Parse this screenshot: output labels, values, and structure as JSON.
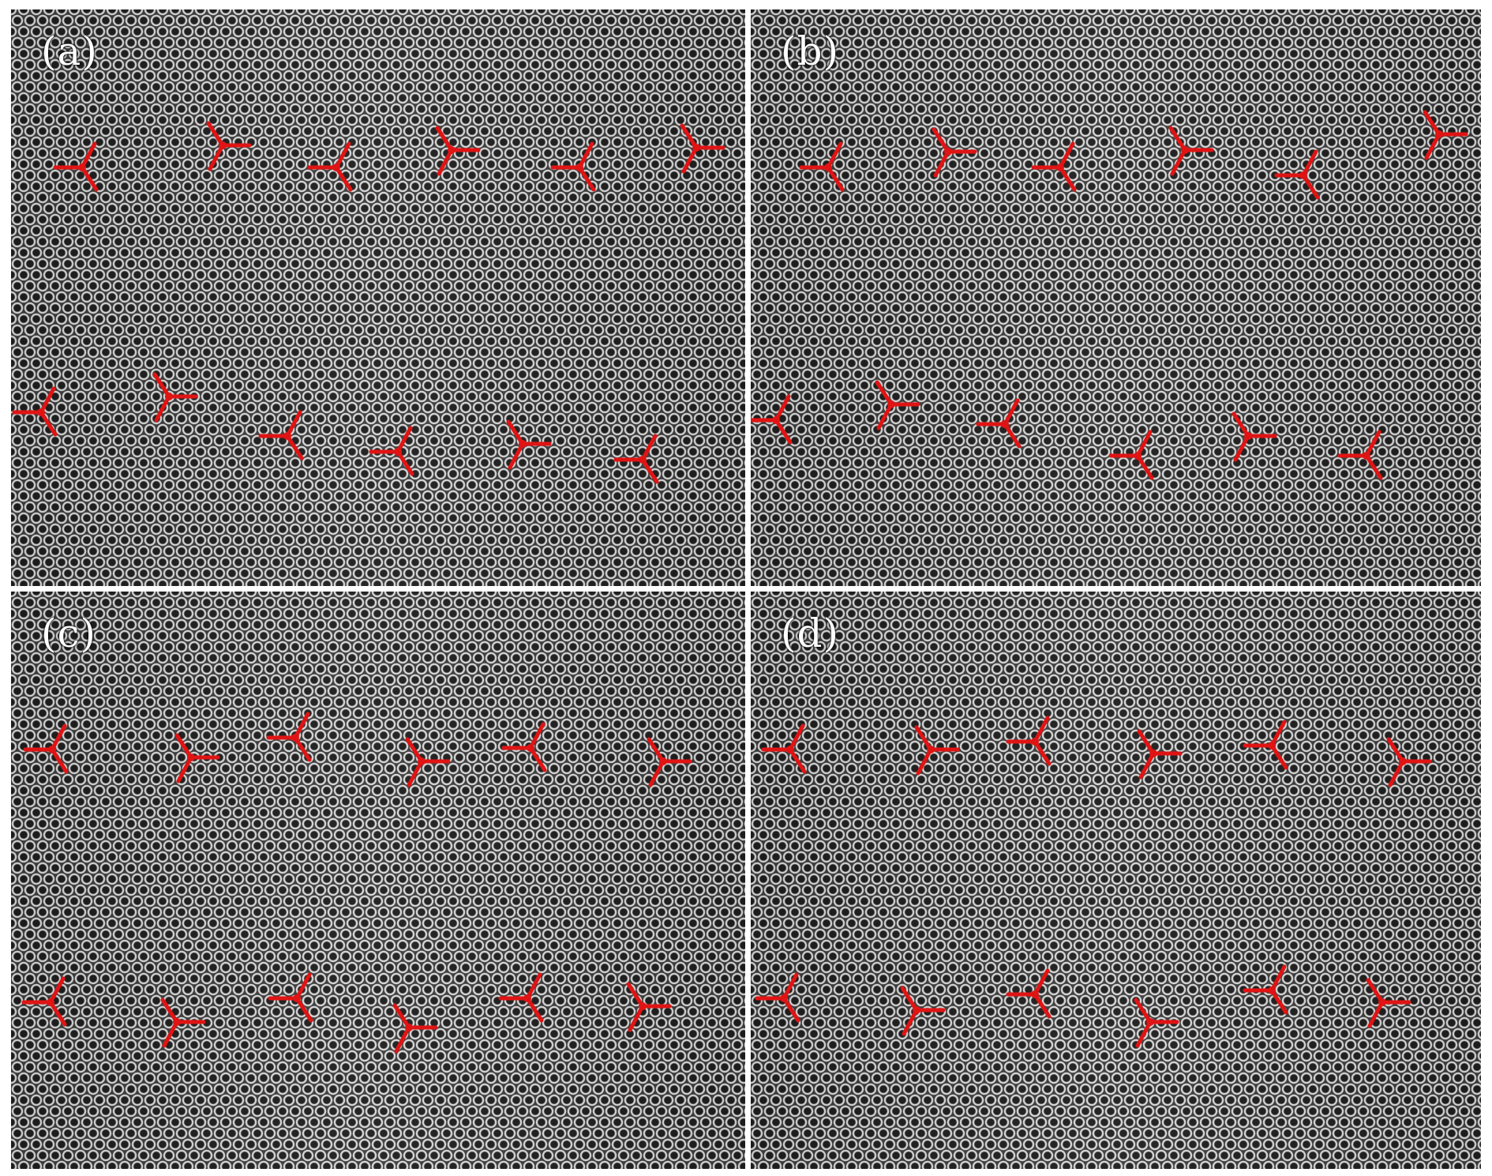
{
  "figure": {
    "panels": [
      {
        "id": "a",
        "label": "(a)"
      },
      {
        "id": "b",
        "label": "(b)"
      },
      {
        "id": "c",
        "label": "(c)"
      },
      {
        "id": "d",
        "label": "(d)"
      }
    ],
    "colors": {
      "marker": "#e01414",
      "lattice_bright": "#d8d8d8",
      "lattice_dark": "#1e1e1e",
      "divider": "#ffffff"
    },
    "icons": {
      "marker": "three-arm-defect-marker-icon"
    }
  }
}
